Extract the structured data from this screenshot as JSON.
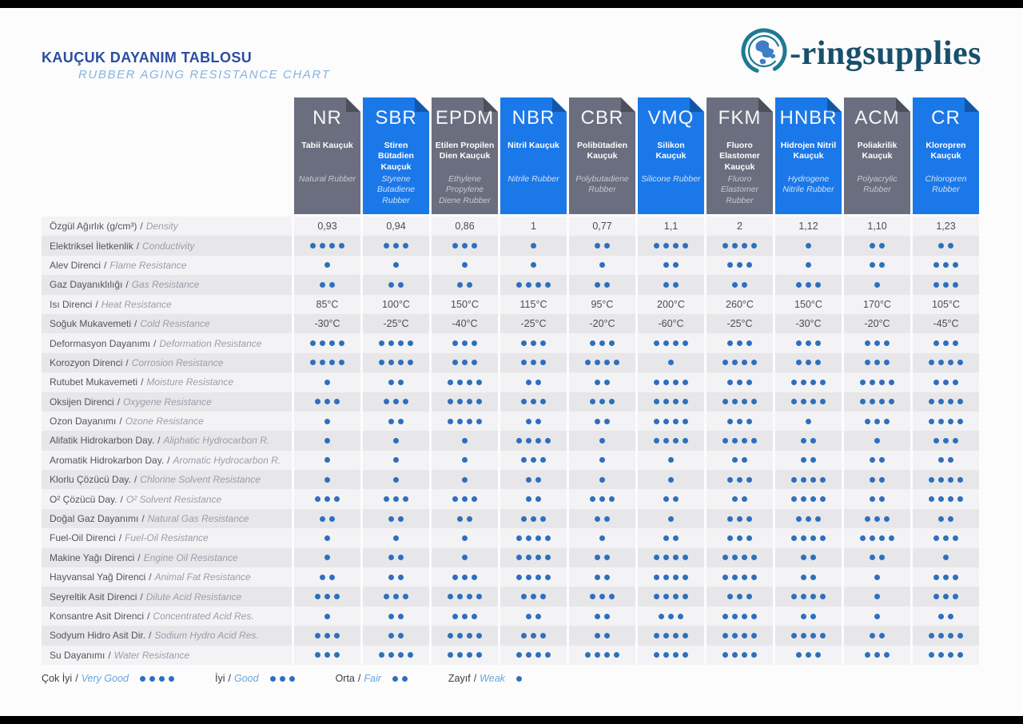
{
  "header": {
    "title_tr": "KAUÇUK DAYANIM TABLOSU",
    "title_en": "RUBBER AGING RESISTANCE CHART",
    "logo_text": "-ringsupplies"
  },
  "legend": {
    "items": [
      {
        "tr": "Çok İyi",
        "en": "Very Good",
        "dots": 4
      },
      {
        "tr": "İyi",
        "en": "Good",
        "dots": 3
      },
      {
        "tr": "Orta",
        "en": "Fair",
        "dots": 2
      },
      {
        "tr": "Zayıf",
        "en": "Weak",
        "dots": 1
      }
    ]
  },
  "colors": {
    "tab_gray": "#6b6e7e",
    "tab_blue": "#1b78e8",
    "dot_blue": "#2e6fbe",
    "title_blue": "#2b4da0",
    "subtitle_blue": "#86b3e0",
    "logo_teal": "#17506b"
  },
  "chart_data": {
    "type": "table",
    "title": "KAUÇUK DAYANIM TABLOSU / RUBBER AGING RESISTANCE CHART",
    "rating_scale": {
      "4": "Very Good",
      "3": "Good",
      "2": "Fair",
      "1": "Weak"
    },
    "columns": [
      {
        "code": "NR",
        "name_tr": "Tabii Kauçuk",
        "name_en": "Natural Rubber",
        "style": "gray"
      },
      {
        "code": "SBR",
        "name_tr": "Stiren Bütadien Kauçuk",
        "name_en": "Styrene Butadiene Rubber",
        "style": "blue"
      },
      {
        "code": "EPDM",
        "name_tr": "Etilen Propilen Dien Kauçuk",
        "name_en": "Ethylene Propylene Diene Rubber",
        "style": "gray"
      },
      {
        "code": "NBR",
        "name_tr": "Nitril Kauçuk",
        "name_en": "Nitrile Rubber",
        "style": "blue"
      },
      {
        "code": "CBR",
        "name_tr": "Polibütadien Kauçuk",
        "name_en": "Polybutadiene Rubber",
        "style": "gray"
      },
      {
        "code": "VMQ",
        "name_tr": "Silikon Kauçuk",
        "name_en": "Silicone Rubber",
        "style": "blue"
      },
      {
        "code": "FKM",
        "name_tr": "Fluoro Elastomer Kauçuk",
        "name_en": "Fluoro Elastomer Rubber",
        "style": "gray"
      },
      {
        "code": "HNBR",
        "name_tr": "Hidrojen Nitril Kauçuk",
        "name_en": "Hydrogene Nitrile Rubber",
        "style": "blue"
      },
      {
        "code": "ACM",
        "name_tr": "Poliakrilik Kauçuk",
        "name_en": "Polyacrylic Rubber",
        "style": "gray"
      },
      {
        "code": "CR",
        "name_tr": "Kloropren Kauçuk",
        "name_en": "Chloropren Rubber",
        "style": "blue"
      }
    ],
    "rows": [
      {
        "tr": "Özgül Ağırlık (g/cm³)",
        "en": "Density",
        "type": "text",
        "values": [
          "0,93",
          "0,94",
          "0,86",
          "1",
          "0,77",
          "1,1",
          "2",
          "1,12",
          "1,10",
          "1,23"
        ]
      },
      {
        "tr": "Elektriksel İletkenlik",
        "en": "Conductivity",
        "type": "dots",
        "values": [
          4,
          3,
          3,
          1,
          2,
          4,
          4,
          1,
          2,
          2
        ]
      },
      {
        "tr": "Alev Direnci",
        "en": "Flame Resistance",
        "type": "dots",
        "values": [
          1,
          1,
          1,
          1,
          1,
          2,
          3,
          1,
          2,
          3
        ]
      },
      {
        "tr": "Gaz Dayanıklılığı",
        "en": "Gas Resistance",
        "type": "dots",
        "values": [
          2,
          2,
          2,
          4,
          2,
          2,
          2,
          3,
          1,
          3
        ]
      },
      {
        "tr": "Isı Direnci",
        "en": "Heat Resistance",
        "type": "text",
        "values": [
          "85°C",
          "100°C",
          "150°C",
          "115°C",
          "95°C",
          "200°C",
          "260°C",
          "150°C",
          "170°C",
          "105°C"
        ]
      },
      {
        "tr": "Soğuk Mukavemeti",
        "en": "Cold Resistance",
        "type": "text",
        "values": [
          "-30°C",
          "-25°C",
          "-40°C",
          "-25°C",
          "-20°C",
          "-60°C",
          "-25°C",
          "-30°C",
          "-20°C",
          "-45°C"
        ]
      },
      {
        "tr": "Deformasyon Dayanımı",
        "en": "Deformation Resistance",
        "type": "dots",
        "values": [
          4,
          4,
          3,
          3,
          3,
          4,
          3,
          3,
          3,
          3
        ]
      },
      {
        "tr": "Korozyon Direnci",
        "en": "Corrosion Resistance",
        "type": "dots",
        "values": [
          4,
          4,
          3,
          3,
          4,
          1,
          4,
          3,
          3,
          4
        ]
      },
      {
        "tr": "Rutubet Mukavemeti",
        "en": "Moisture Resistance",
        "type": "dots",
        "values": [
          1,
          2,
          4,
          2,
          2,
          4,
          3,
          4,
          4,
          3
        ]
      },
      {
        "tr": "Oksijen Direnci",
        "en": "Oxygene Resistance",
        "type": "dots",
        "values": [
          3,
          3,
          4,
          3,
          3,
          4,
          4,
          4,
          4,
          4
        ]
      },
      {
        "tr": "Ozon Dayanımı",
        "en": "Ozone Resistance",
        "type": "dots",
        "values": [
          1,
          2,
          4,
          2,
          2,
          4,
          3,
          1,
          3,
          4
        ]
      },
      {
        "tr": "Alifatik Hidrokarbon Day.",
        "en": "Aliphatic Hydrocarbon R.",
        "type": "dots",
        "values": [
          1,
          1,
          1,
          4,
          1,
          4,
          4,
          2,
          1,
          3
        ]
      },
      {
        "tr": "Aromatik Hidrokarbon Day.",
        "en": "Aromatic Hydrocarbon R.",
        "type": "dots",
        "values": [
          1,
          1,
          1,
          3,
          1,
          1,
          2,
          2,
          2,
          2
        ]
      },
      {
        "tr": "Klorlu Çözücü Day.",
        "en": "Chlorine Solvent Resistance",
        "type": "dots",
        "values": [
          1,
          1,
          1,
          2,
          1,
          1,
          3,
          4,
          2,
          4
        ]
      },
      {
        "tr": "O² Çözücü Day.",
        "en": "O² Solvent Resistance",
        "type": "dots",
        "values": [
          3,
          3,
          3,
          2,
          3,
          2,
          2,
          4,
          2,
          4
        ]
      },
      {
        "tr": "Doğal Gaz Dayanımı",
        "en": "Natural Gas Resistance",
        "type": "dots",
        "values": [
          2,
          2,
          2,
          3,
          2,
          1,
          3,
          3,
          3,
          2
        ]
      },
      {
        "tr": "Fuel-Oil Direnci",
        "en": "Fuel-Oil Resistance",
        "type": "dots",
        "values": [
          1,
          1,
          1,
          4,
          1,
          2,
          3,
          4,
          4,
          3
        ]
      },
      {
        "tr": "Makine Yağı Direnci",
        "en": "Engine Oil Resistance",
        "type": "dots",
        "values": [
          1,
          2,
          1,
          4,
          2,
          4,
          4,
          2,
          2,
          1
        ]
      },
      {
        "tr": "Hayvansal Yağ Direnci",
        "en": "Animal Fat Resistance",
        "type": "dots",
        "values": [
          2,
          2,
          3,
          4,
          2,
          4,
          4,
          2,
          1,
          3
        ]
      },
      {
        "tr": "Seyreltik Asit Direnci",
        "en": "Dilute Acid Resistance",
        "type": "dots",
        "values": [
          3,
          3,
          4,
          3,
          3,
          4,
          3,
          4,
          1,
          3
        ]
      },
      {
        "tr": "Konsantre Asit Direnci",
        "en": "Concentrated Acid Res.",
        "type": "dots",
        "values": [
          1,
          2,
          3,
          2,
          2,
          3,
          4,
          2,
          1,
          2
        ]
      },
      {
        "tr": "Sodyum Hidro Asit Dir.",
        "en": "Sodium Hydro Acid Res.",
        "type": "dots",
        "values": [
          3,
          2,
          4,
          3,
          2,
          4,
          4,
          4,
          2,
          4
        ]
      },
      {
        "tr": "Su Dayanımı",
        "en": "Water Resistance",
        "type": "dots",
        "values": [
          3,
          4,
          4,
          4,
          4,
          4,
          4,
          3,
          3,
          4
        ]
      }
    ]
  }
}
